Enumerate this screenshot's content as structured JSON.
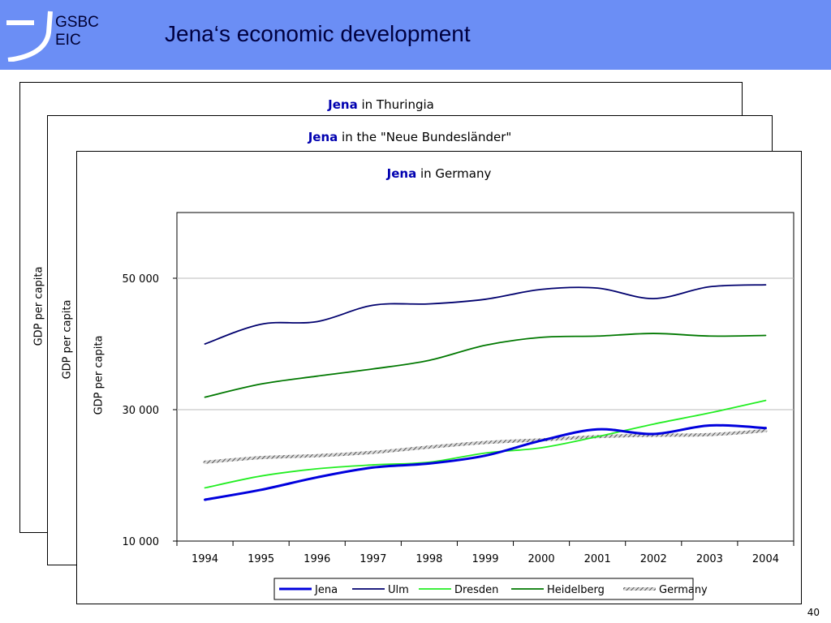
{
  "logo": {
    "line1": "GSBC",
    "line2": "EIC"
  },
  "slide_title": "Jena‘s economic development",
  "page_number": "40",
  "panels": [
    {
      "title_bold": "Jena",
      "title_rest": " in Thuringia",
      "ylabel": "GDP per capita"
    },
    {
      "title_bold": "Jena",
      "title_rest": " in the \"Neue Bundesländer\"",
      "ylabel": "GDP per capita"
    },
    {
      "title_bold": "Jena",
      "title_rest": " in Germany",
      "ylabel": "GDP per capita"
    }
  ],
  "colors": {
    "header": "#6b8ef5",
    "title_accent": "#0000b0"
  },
  "chart_data": {
    "type": "line",
    "x": [
      "1994",
      "1995",
      "1996",
      "1997",
      "1998",
      "1999",
      "2000",
      "2001",
      "2002",
      "2003",
      "2004"
    ],
    "yticks": [
      "10 000",
      "30 000",
      "50 000"
    ],
    "ytick_values": [
      10000,
      30000,
      50000
    ],
    "ylim": [
      10000,
      60000
    ],
    "ylabel": "GDP per capita",
    "grid": "horizontal at 30 000 and 50 000",
    "legend_position": "bottom",
    "series": [
      {
        "name": "Jena",
        "color": "#0000dd",
        "width": 3,
        "values": [
          16300,
          17800,
          19700,
          21200,
          21800,
          23000,
          25300,
          27000,
          26300,
          27600,
          27200
        ]
      },
      {
        "name": "Ulm",
        "color": "#00006e",
        "width": 1.8,
        "values": [
          40000,
          43000,
          43400,
          45900,
          46100,
          46800,
          48300,
          48500,
          46900,
          48700,
          49000
        ]
      },
      {
        "name": "Dresden",
        "color": "#22ee22",
        "width": 1.8,
        "values": [
          18100,
          19900,
          21000,
          21600,
          22000,
          23400,
          24200,
          25900,
          27800,
          29500,
          31400
        ]
      },
      {
        "name": "Heidelberg",
        "color": "#007800",
        "width": 1.8,
        "values": [
          31900,
          33900,
          35100,
          36200,
          37500,
          39800,
          41000,
          41200,
          41600,
          41200,
          41300
        ]
      },
      {
        "name": "Germany",
        "color": "#888888",
        "width": 4,
        "pattern": "hatched",
        "values": [
          22000,
          22700,
          23000,
          23500,
          24300,
          25000,
          25400,
          25900,
          26100,
          26200,
          26800
        ]
      }
    ]
  }
}
